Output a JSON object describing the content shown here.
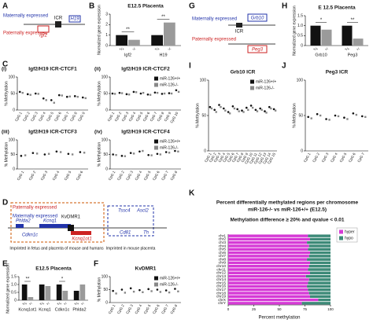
{
  "diagrams": {
    "A": {
      "panel": "A",
      "maternal": "Maternally expressed",
      "paternal": "Paternally expressed",
      "igf2": "Igf2",
      "icr": "ICR",
      "h19": "H19"
    },
    "D": {
      "panel": "D",
      "paternal": "Paternally expressed",
      "maternal": "Maternally expressed",
      "phlda2": "Phlda2",
      "kcnq1": "Kcnq1",
      "kvdmr1": "KvDMR1",
      "cdkn1c": "Cdkn1c",
      "kcnq1ot1": "Kcnq1ot1",
      "tssc4": "Tssc4",
      "ascl2": "Ascl2",
      "cd81": "Cd81",
      "th": "Th",
      "note1": "Imprinted in fetus and placenta of mouse and humans",
      "note2": "Imprinted in mouse placenta"
    },
    "G": {
      "panel": "G",
      "maternal": "Maternally expressed",
      "paternal": "Paternally expressed",
      "grb10": "Grb10",
      "icr": "ICR",
      "peg3": "Peg3"
    }
  },
  "chart_data": [
    {
      "type": "bar",
      "panel": "B",
      "title": "E12.5 Placenta",
      "y_label": "Normalized gene expression",
      "categories": [
        "Igf2",
        "H19"
      ],
      "series": [
        {
          "name": "+/+",
          "color": "#111111",
          "values": [
            1.0,
            1.0
          ]
        },
        {
          "name": "-/-",
          "color": "#9a9a9a",
          "values": [
            0.55,
            2.2
          ]
        }
      ],
      "sig": [
        "**",
        "**"
      ],
      "ylim": [
        0,
        3
      ],
      "yticks": [
        0,
        1,
        2,
        3
      ]
    },
    {
      "type": "dot",
      "panel": "C",
      "subpanel": "(i)",
      "title": "Igf2/H19 ICR-CTCF1",
      "y_label": "% Methylation",
      "categories": [
        "CpG 1",
        "CpG 2",
        "CpG 3",
        "CpG 4",
        "CpG 5",
        "CpG 6",
        "CpG 7",
        "CpG 8",
        "CpG 9"
      ],
      "series": [
        {
          "name": "miR-126+/+",
          "color": "#111111",
          "values": [
            55,
            48,
            50,
            35,
            30,
            45,
            40,
            42,
            38
          ]
        },
        {
          "name": "miR-126-/-",
          "color": "#888888",
          "values": [
            52,
            46,
            49,
            30,
            22,
            44,
            41,
            40,
            36
          ]
        }
      ],
      "ylim": [
        0,
        100
      ],
      "yticks": [
        0,
        50,
        100
      ]
    },
    {
      "type": "dot",
      "subpanel": "(ii)",
      "title": "Igf2/H19 ICR-CTCF2",
      "y_label": "% Methylation",
      "categories": [
        "CpG 1",
        "CpG 2",
        "CpG 3",
        "CpG 4",
        "CpG 5",
        "CpG 6",
        "CpG 7",
        "CpG 8",
        "CpG 9",
        "CpG 10"
      ],
      "series": [
        {
          "name": "miR-126+/+",
          "color": "#111111",
          "values": [
            50,
            52,
            48,
            55,
            50,
            47,
            53,
            49,
            51,
            60
          ]
        },
        {
          "name": "miR-126-/-",
          "color": "#888888",
          "values": [
            49,
            51,
            47,
            54,
            52,
            46,
            52,
            50,
            50,
            55
          ]
        }
      ],
      "legend": true,
      "ylim": [
        0,
        100
      ],
      "yticks": [
        0,
        50,
        100
      ]
    },
    {
      "type": "dot",
      "subpanel": "(iii)",
      "title": "Igf2/H19 ICR-CTCF3",
      "y_label": "% Methylation",
      "categories": [
        "CpG 1",
        "CpG 2",
        "CpG 3",
        "CpG 4",
        "CpG 5",
        "CpG 6"
      ],
      "series": [
        {
          "name": "miR-126+/+",
          "color": "#111111",
          "values": [
            45,
            55,
            50,
            60,
            52,
            58
          ]
        },
        {
          "name": "miR-126-/-",
          "color": "#888888",
          "values": [
            47,
            53,
            52,
            58,
            50,
            56
          ]
        }
      ],
      "ylim": [
        0,
        100
      ],
      "yticks": [
        0,
        50,
        100
      ]
    },
    {
      "type": "dot",
      "subpanel": "(iv)",
      "title": "Igf2/H19 ICR-CTCF4",
      "y_label": "% Methylation",
      "categories": [
        "CpG 1",
        "CpG 2",
        "CpG 3",
        "CpG 4",
        "CpG 5",
        "CpG 6",
        "CpG 7",
        "CpG 8"
      ],
      "series": [
        {
          "name": "miR-126+/+",
          "color": "#111111",
          "values": [
            50,
            45,
            55,
            60,
            48,
            52,
            58,
            62
          ]
        },
        {
          "name": "miR-126-/-",
          "color": "#888888",
          "values": [
            48,
            44,
            53,
            62,
            47,
            50,
            56,
            60
          ]
        }
      ],
      "legend": true,
      "ylim": [
        0,
        100
      ],
      "yticks": [
        0,
        50,
        100
      ]
    },
    {
      "type": "bar",
      "panel": "E",
      "title": "E12.5 Placenta",
      "y_label": "Normalized gene expression",
      "categories": [
        "Kcnq1ot1",
        "Kcnq1",
        "Cdkn1c",
        "Phlda2"
      ],
      "series": [
        {
          "name": "+/+",
          "color": "#111111",
          "values": [
            1.0,
            1.0,
            1.0,
            0.6
          ]
        },
        {
          "name": "-/-",
          "color": "#9a9a9a",
          "values": [
            0.2,
            0.9,
            0.6,
            1.0
          ]
        }
      ],
      "sig": [
        "**",
        null,
        "*",
        null
      ],
      "ylim": [
        0,
        1.5
      ],
      "yticks": [
        0,
        0.5,
        {
          "value": 1,
          "label": "1.0"
        },
        1.5
      ]
    },
    {
      "type": "dot",
      "panel": "F",
      "title": "KvDMR1",
      "y_label": "% Methylation",
      "categories": [
        "CpG 1",
        "CpG 2",
        "CpG 3",
        "CpG 4",
        "CpG 5",
        "CpG 6",
        "CpG 7",
        "CpG 8"
      ],
      "series": [
        {
          "name": "miR-126+/+",
          "color": "#111111",
          "values": [
            45,
            50,
            55,
            48,
            52,
            50,
            47,
            53
          ]
        },
        {
          "name": "miR-126-/-",
          "color": "#888888",
          "values": [
            35,
            38,
            42,
            40,
            44,
            41,
            39,
            43
          ]
        }
      ],
      "legend": true,
      "ylim": [
        0,
        100
      ],
      "yticks": [
        0,
        50,
        100
      ]
    },
    {
      "type": "bar",
      "panel": "H",
      "title": "E 12.5 Placenta",
      "y_label": "Normalized gene expression",
      "categories": [
        "Grb10",
        "Peg3"
      ],
      "series": [
        {
          "name": "+/+",
          "color": "#111111",
          "values": [
            1.0,
            1.0
          ]
        },
        {
          "name": "-/-",
          "color": "#9a9a9a",
          "values": [
            0.8,
            0.35
          ]
        }
      ],
      "sig": [
        "*",
        "**"
      ],
      "ylim": [
        0,
        1.5
      ],
      "yticks": [
        0,
        0.5,
        {
          "value": 1,
          "label": "1.0"
        },
        1.5
      ]
    },
    {
      "type": "dot",
      "panel": "I",
      "title": "Grb10 ICR",
      "y_label": "% Methylation",
      "categories": [
        "CpG 1",
        "CpG 2",
        "CpG 3",
        "CpG 4",
        "CpG 5",
        "CpG 6",
        "CpG 7",
        "CpG 8",
        "CpG 9",
        "CpG 10",
        "CpG 11",
        "CpG 12",
        "CpG 13",
        "CpG 14",
        "CpG 15"
      ],
      "series": [
        {
          "name": "miR-126+/+",
          "color": "#111111",
          "values": [
            62,
            58,
            65,
            60,
            55,
            63,
            59,
            57,
            61,
            64,
            58,
            60,
            56,
            62,
            59
          ]
        },
        {
          "name": "miR-126-/-",
          "color": "#888888",
          "values": [
            60,
            55,
            62,
            57,
            53,
            60,
            56,
            55,
            58,
            61,
            56,
            58,
            54,
            60,
            57
          ]
        }
      ],
      "legend": true,
      "ylim": [
        0,
        100
      ],
      "yticks": [
        0,
        50,
        100
      ]
    },
    {
      "type": "dot",
      "panel": "J",
      "title": "Peg3 ICR",
      "y_label": "% Methylation",
      "categories": [
        "CpG 1",
        "CpG 2",
        "CpG 3",
        "CpG 4",
        "CpG 5",
        "CpG 6",
        "CpG 7"
      ],
      "series": [
        {
          "name": "miR-126+/+",
          "color": "#111111",
          "values": [
            48,
            52,
            45,
            50,
            47,
            53,
            49
          ]
        },
        {
          "name": "miR-126-/-",
          "color": "#888888",
          "values": [
            46,
            50,
            44,
            49,
            45,
            51,
            48
          ]
        }
      ],
      "ylim": [
        0,
        100
      ],
      "yticks": [
        0,
        50,
        100
      ]
    },
    {
      "type": "hstack",
      "panel": "K",
      "title": "Percent differentially methylated regions per chromosome",
      "subtitle": "miR-126-/- vs miR-126+/+ (E12.5)",
      "note": "Methylation difference ≥ 20% and qvalue < 0.01",
      "x_label": "Percent methylation",
      "categories": [
        "chr1",
        "chr2",
        "chr3",
        "chr4",
        "chr5",
        "chr6",
        "chr7",
        "chr8",
        "chr9",
        "chr10",
        "chr11",
        "chr12",
        "chr13",
        "chr14",
        "chr15",
        "chr16",
        "chr17",
        "chr18",
        "chr19",
        "chrX",
        "chrY"
      ],
      "series": [
        {
          "name": "hyper",
          "color": "#d63ad6",
          "values": [
            78,
            80,
            77,
            79,
            78,
            80,
            79,
            77,
            80,
            79,
            78,
            80,
            76,
            79,
            78,
            77,
            78,
            79,
            80,
            88,
            72
          ]
        },
        {
          "name": "hypo",
          "color": "#3d8a78",
          "values": [
            22,
            20,
            23,
            21,
            22,
            20,
            21,
            23,
            20,
            21,
            22,
            20,
            24,
            21,
            22,
            23,
            22,
            21,
            20,
            12,
            28
          ]
        }
      ],
      "legend": "top-right",
      "xlim": [
        0,
        100
      ],
      "xticks": [
        0,
        25,
        50,
        75,
        100
      ]
    }
  ]
}
